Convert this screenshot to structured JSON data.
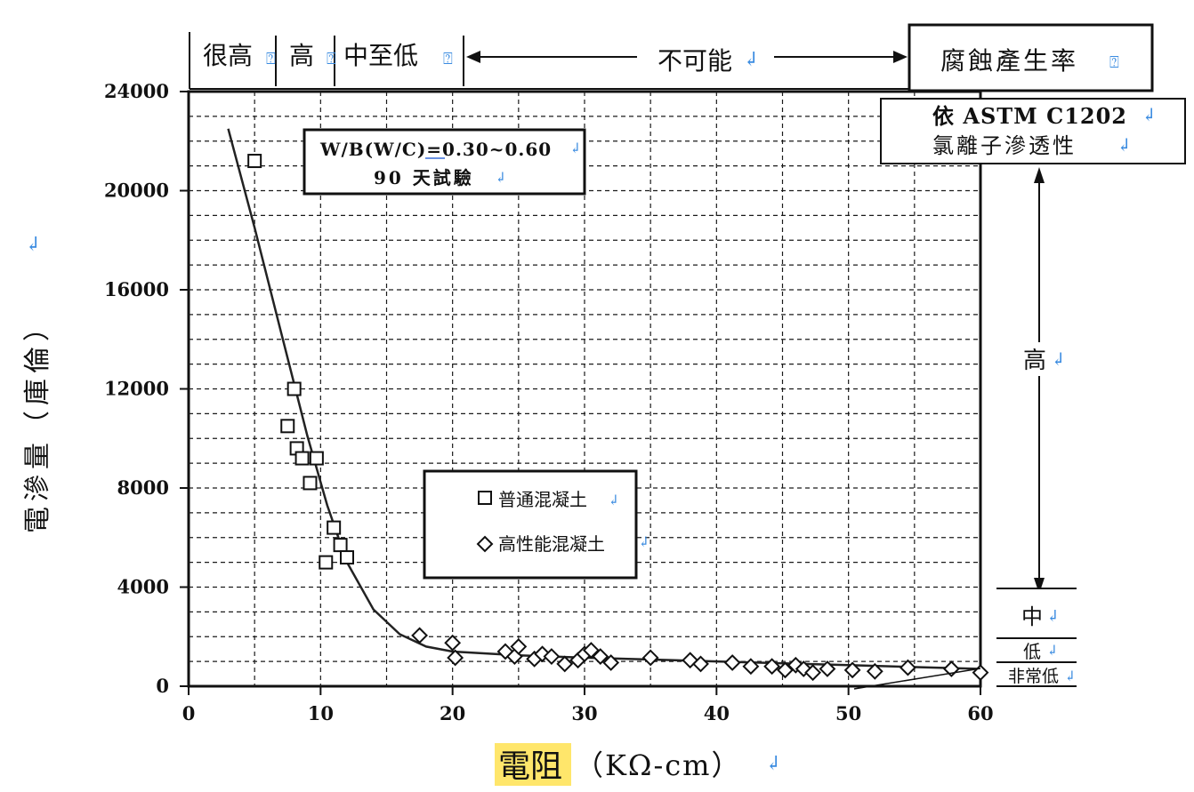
{
  "chart_data": {
    "type": "scatter",
    "xlabel_main": "電阻",
    "xlabel_unit": "（KΩ-cm）",
    "ylabel": "電滲量（庫倫）",
    "xlim": [
      0,
      60
    ],
    "ylim": [
      0,
      24000
    ],
    "x_ticks": [
      "0",
      "10",
      "20",
      "30",
      "40",
      "50",
      "60"
    ],
    "y_ticks": [
      "0",
      "4000",
      "8000",
      "12000",
      "16000",
      "20000",
      "24000"
    ],
    "grid": true,
    "annotation": {
      "line1": "W/B(W/C)=0.30~0.60",
      "line2": "90 天試驗"
    },
    "corrosion_scale": {
      "very_high": "很高",
      "high": "高",
      "mid_low": "中至低",
      "impossible": "不可能",
      "title": "腐蝕產生率"
    },
    "astm_box": {
      "line1": "依 ASTM C1202",
      "line2": "氯離子滲透性"
    },
    "permeability_levels": {
      "high": "高",
      "moderate": "中",
      "low": "低",
      "very_low": "非常低"
    },
    "legend": [
      {
        "name": "普通混凝土",
        "marker": "square"
      },
      {
        "name": "高性能混凝土",
        "marker": "diamond"
      }
    ],
    "series": [
      {
        "name": "普通混凝土",
        "marker": "square",
        "points": [
          [
            5,
            21200
          ],
          [
            8,
            12000
          ],
          [
            7.5,
            10500
          ],
          [
            8.2,
            9600
          ],
          [
            8.6,
            9200
          ],
          [
            9.7,
            9200
          ],
          [
            9.2,
            8200
          ],
          [
            11,
            6400
          ],
          [
            11.5,
            5700
          ],
          [
            10.4,
            5000
          ],
          [
            12,
            5200
          ]
        ]
      },
      {
        "name": "高性能混凝土",
        "marker": "diamond",
        "points": [
          [
            17.5,
            2050
          ],
          [
            20,
            1750
          ],
          [
            20.2,
            1150
          ],
          [
            24,
            1400
          ],
          [
            24.7,
            1200
          ],
          [
            25,
            1600
          ],
          [
            26.2,
            1100
          ],
          [
            26.8,
            1300
          ],
          [
            27.5,
            1200
          ],
          [
            28.5,
            900
          ],
          [
            29.5,
            1050
          ],
          [
            30,
            1300
          ],
          [
            30.5,
            1450
          ],
          [
            31.2,
            1200
          ],
          [
            32,
            950
          ],
          [
            35,
            1150
          ],
          [
            38,
            1050
          ],
          [
            38.8,
            900
          ],
          [
            41.2,
            950
          ],
          [
            42.6,
            800
          ],
          [
            44.2,
            800
          ],
          [
            45.2,
            650
          ],
          [
            46,
            850
          ],
          [
            46.6,
            700
          ],
          [
            47.3,
            550
          ],
          [
            48.4,
            700
          ],
          [
            50.3,
            650
          ],
          [
            52,
            600
          ],
          [
            54.5,
            750
          ],
          [
            57.8,
            700
          ],
          [
            60,
            550
          ]
        ]
      }
    ],
    "fit_curve": [
      [
        3,
        22500
      ],
      [
        5,
        18500
      ],
      [
        7,
        14300
      ],
      [
        9,
        10100
      ],
      [
        10.5,
        7300
      ],
      [
        12,
        5000
      ],
      [
        14,
        3100
      ],
      [
        16,
        2100
      ],
      [
        18,
        1600
      ],
      [
        20,
        1400
      ],
      [
        25,
        1250
      ],
      [
        30,
        1150
      ],
      [
        40,
        1000
      ],
      [
        50,
        850
      ],
      [
        60,
        700
      ]
    ],
    "colors": {
      "ink": "#111111",
      "grid": "#1a1a1a",
      "highlight": "#ffe66b",
      "return_mark": "#3a8be0"
    }
  }
}
